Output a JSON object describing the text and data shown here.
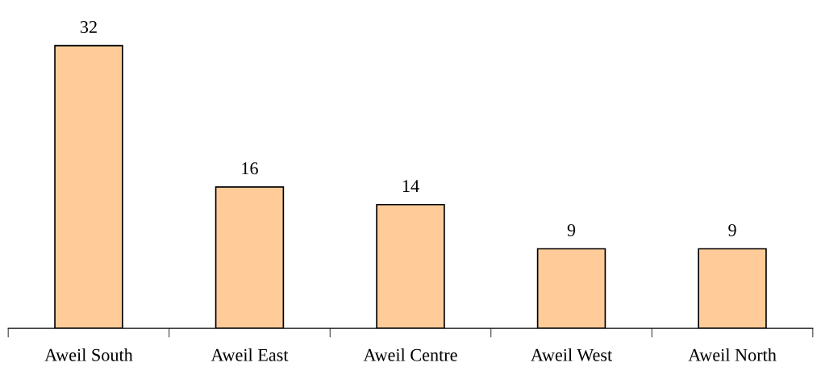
{
  "chart_data": {
    "type": "bar",
    "categories": [
      "Aweil South",
      "Aweil East",
      "Aweil Centre",
      "Aweil West",
      "Aweil North"
    ],
    "values": [
      32,
      16,
      14,
      9,
      9
    ],
    "color": "#ffcc99",
    "data_labels": true,
    "grid": false,
    "legend": false,
    "tick_labels": "x"
  }
}
